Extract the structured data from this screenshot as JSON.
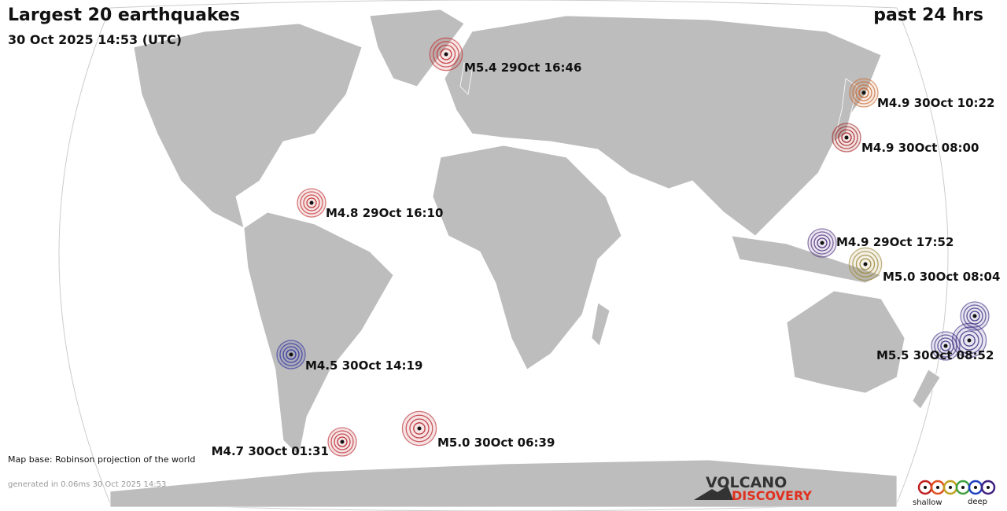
{
  "header": {
    "title": "Largest 20 earthquakes",
    "period": "past 24 hrs",
    "timestamp": "30 Oct 2025 14:53 (UTC)"
  },
  "events": [
    {
      "label": "M5.4 29Oct 16:46",
      "color": "#c0282a"
    },
    {
      "label": "M4.9 30Oct 10:22",
      "color": "#c8642a"
    },
    {
      "label": "M4.9 30Oct 08:00",
      "color": "#a01818"
    },
    {
      "label": "M4.8 29Oct 16:10",
      "color": "#c0282a"
    },
    {
      "label": "M4.9 29Oct 17:52",
      "color": "#4a2a7a"
    },
    {
      "label": "M5.0 30Oct 08:04",
      "color": "#9a8430"
    },
    {
      "label": "M4.5 30Oct 14:19",
      "color": "#2a2aa0"
    },
    {
      "label": "M4.7 30Oct 01:31",
      "color": "#b82028"
    },
    {
      "label": "M5.0 30Oct 06:39",
      "color": "#b82028"
    },
    {
      "label": "M5.5 30Oct 08:52",
      "color": "#3a2a80"
    }
  ],
  "footer": {
    "map_base": "Map base: Robinson projection of the world",
    "generated": "generated in 0.06ms 30 Oct 2025 14:53",
    "logo_top": "VOLCANO",
    "logo_bottom": "DISCOVERY",
    "legend_shallow": "shallow",
    "legend_deep": "deep"
  }
}
